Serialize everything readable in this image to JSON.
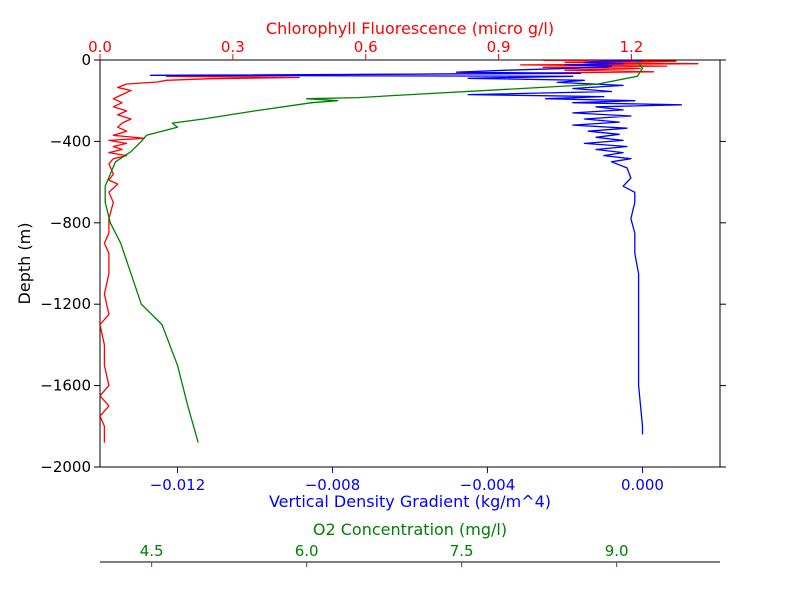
{
  "chart_data": {
    "type": "line",
    "grid": false,
    "legend": null,
    "ylabel": "Depth (m)",
    "ylim": [
      -2000,
      0
    ],
    "yticks": [
      0,
      -400,
      -800,
      -1200,
      -1600,
      -2000
    ],
    "ytick_labels": [
      "0",
      "−400",
      "−800",
      "−1200",
      "−1600",
      "−2000"
    ],
    "axes": {
      "density": {
        "label": "Vertical Density Gradient (kg/m^4)",
        "color": "#0000ff",
        "position": "bottom",
        "xlim": [
          -0.014,
          0.002
        ],
        "ticks": [
          -0.012,
          -0.008,
          -0.004,
          0.0
        ],
        "tick_labels": [
          "−0.012",
          "−0.008",
          "−0.004",
          "0.000"
        ]
      },
      "chlorophyll": {
        "label": "Chlorophyll Fluorescence (micro g/l)",
        "color": "#ff0000",
        "position": "top",
        "xlim": [
          0.0,
          1.4
        ],
        "ticks": [
          0.0,
          0.3,
          0.6,
          0.9,
          1.2
        ],
        "tick_labels": [
          "0.0",
          "0.3",
          "0.6",
          "0.9",
          "1.2"
        ]
      },
      "oxygen": {
        "label": "O2 Concentration (mg/l)",
        "color": "#008000",
        "position": "bottom-offset",
        "xlim": [
          4.0,
          10.0
        ],
        "ticks": [
          4.5,
          6.0,
          7.5,
          9.0
        ],
        "tick_labels": [
          "4.5",
          "6.0",
          "7.5",
          "9.0"
        ]
      }
    },
    "series": [
      {
        "axis": "chlorophyll",
        "color": "#ff0000",
        "points": [
          [
            1.0,
            -2
          ],
          [
            1.3,
            -6
          ],
          [
            1.05,
            -12
          ],
          [
            1.35,
            -18
          ],
          [
            0.95,
            -24
          ],
          [
            1.28,
            -30
          ],
          [
            1.0,
            -36
          ],
          [
            1.22,
            -42
          ],
          [
            1.05,
            -50
          ],
          [
            1.25,
            -58
          ],
          [
            0.9,
            -66
          ],
          [
            0.55,
            -72
          ],
          [
            0.15,
            -80
          ],
          [
            0.45,
            -86
          ],
          [
            0.25,
            -92
          ],
          [
            0.15,
            -100
          ],
          [
            0.13,
            -108
          ],
          [
            0.06,
            -118
          ],
          [
            0.04,
            -135
          ],
          [
            0.07,
            -150
          ],
          [
            0.05,
            -170
          ],
          [
            0.03,
            -190
          ],
          [
            0.05,
            -210
          ],
          [
            0.03,
            -230
          ],
          [
            0.06,
            -250
          ],
          [
            0.04,
            -270
          ],
          [
            0.07,
            -290
          ],
          [
            0.05,
            -310
          ],
          [
            0.04,
            -330
          ],
          [
            0.06,
            -350
          ],
          [
            0.03,
            -370
          ],
          [
            0.1,
            -385
          ],
          [
            0.02,
            -395
          ],
          [
            0.06,
            -410
          ],
          [
            0.03,
            -425
          ],
          [
            0.05,
            -440
          ],
          [
            0.02,
            -455
          ],
          [
            0.06,
            -470
          ],
          [
            0.03,
            -485
          ],
          [
            0.02,
            -510
          ],
          [
            0.03,
            -560
          ],
          [
            0.02,
            -590
          ],
          [
            0.04,
            -610
          ],
          [
            0.02,
            -650
          ],
          [
            0.03,
            -700
          ],
          [
            0.02,
            -780
          ],
          [
            0.02,
            -850
          ],
          [
            0.01,
            -900
          ],
          [
            0.02,
            -950
          ],
          [
            0.02,
            -1050
          ],
          [
            0.01,
            -1150
          ],
          [
            0.02,
            -1250
          ],
          [
            0.0,
            -1300
          ],
          [
            0.01,
            -1400
          ],
          [
            0.01,
            -1500
          ],
          [
            0.02,
            -1600
          ],
          [
            0.0,
            -1650
          ],
          [
            0.02,
            -1700
          ],
          [
            0.0,
            -1750
          ],
          [
            0.01,
            -1800
          ],
          [
            0.01,
            -1880
          ]
        ]
      },
      {
        "axis": "density",
        "color": "#0000ff",
        "points": [
          [
            0.0,
            -2
          ],
          [
            -0.001,
            -6
          ],
          [
            -0.0015,
            -12
          ],
          [
            -0.0005,
            -18
          ],
          [
            -0.002,
            -24
          ],
          [
            -0.0008,
            -30
          ],
          [
            -0.001,
            -36
          ],
          [
            -0.0035,
            -50
          ],
          [
            -0.0048,
            -60
          ],
          [
            -0.0016,
            -66
          ],
          [
            -0.0127,
            -75
          ],
          [
            -0.0018,
            -80
          ],
          [
            -0.0045,
            -90
          ],
          [
            -0.0015,
            -100
          ],
          [
            -0.0022,
            -110
          ],
          [
            -0.0005,
            -125
          ],
          [
            -0.0018,
            -140
          ],
          [
            -0.0008,
            -155
          ],
          [
            -0.0045,
            -170
          ],
          [
            -0.001,
            -180
          ],
          [
            -0.0025,
            -190
          ],
          [
            -0.0002,
            -200
          ],
          [
            -0.0018,
            -210
          ],
          [
            0.001,
            -220
          ],
          [
            -0.0012,
            -230
          ],
          [
            -0.0005,
            -245
          ],
          [
            -0.0018,
            -260
          ],
          [
            -0.0003,
            -275
          ],
          [
            -0.0015,
            -290
          ],
          [
            -0.0006,
            -305
          ],
          [
            -0.0018,
            -320
          ],
          [
            -0.0004,
            -335
          ],
          [
            -0.0014,
            -350
          ],
          [
            -0.0006,
            -365
          ],
          [
            -0.0012,
            -380
          ],
          [
            -0.0005,
            -395
          ],
          [
            -0.0015,
            -410
          ],
          [
            -0.0004,
            -425
          ],
          [
            -0.0012,
            -440
          ],
          [
            -0.0005,
            -455
          ],
          [
            -0.001,
            -470
          ],
          [
            -0.0003,
            -485
          ],
          [
            -0.0008,
            -500
          ],
          [
            -0.0004,
            -530
          ],
          [
            -0.0003,
            -580
          ],
          [
            -0.0005,
            -620
          ],
          [
            -0.0002,
            -650
          ],
          [
            -0.0002,
            -700
          ],
          [
            -0.0003,
            -780
          ],
          [
            -0.0002,
            -850
          ],
          [
            -0.0002,
            -950
          ],
          [
            -0.0001,
            -1050
          ],
          [
            -0.0001,
            -1250
          ],
          [
            -0.0001,
            -1400
          ],
          [
            -0.0001,
            -1600
          ],
          [
            0.0,
            -1800
          ],
          [
            0.0,
            -1840
          ]
        ]
      },
      {
        "axis": "oxygen",
        "color": "#008000",
        "points": [
          [
            9.2,
            -5
          ],
          [
            9.25,
            -40
          ],
          [
            9.2,
            -80
          ],
          [
            8.8,
            -120
          ],
          [
            7.0,
            -170
          ],
          [
            6.5,
            -185
          ],
          [
            6.0,
            -190
          ],
          [
            6.3,
            -200
          ],
          [
            6.05,
            -210
          ],
          [
            5.5,
            -250
          ],
          [
            5.0,
            -290
          ],
          [
            4.7,
            -310
          ],
          [
            4.75,
            -330
          ],
          [
            4.45,
            -370
          ],
          [
            4.4,
            -400
          ],
          [
            4.3,
            -450
          ],
          [
            4.15,
            -500
          ],
          [
            4.1,
            -560
          ],
          [
            4.05,
            -620
          ],
          [
            4.05,
            -700
          ],
          [
            4.1,
            -800
          ],
          [
            4.2,
            -900
          ],
          [
            4.3,
            -1050
          ],
          [
            4.4,
            -1200
          ],
          [
            4.6,
            -1300
          ],
          [
            4.75,
            -1500
          ],
          [
            4.85,
            -1700
          ],
          [
            4.95,
            -1880
          ]
        ]
      }
    ]
  }
}
